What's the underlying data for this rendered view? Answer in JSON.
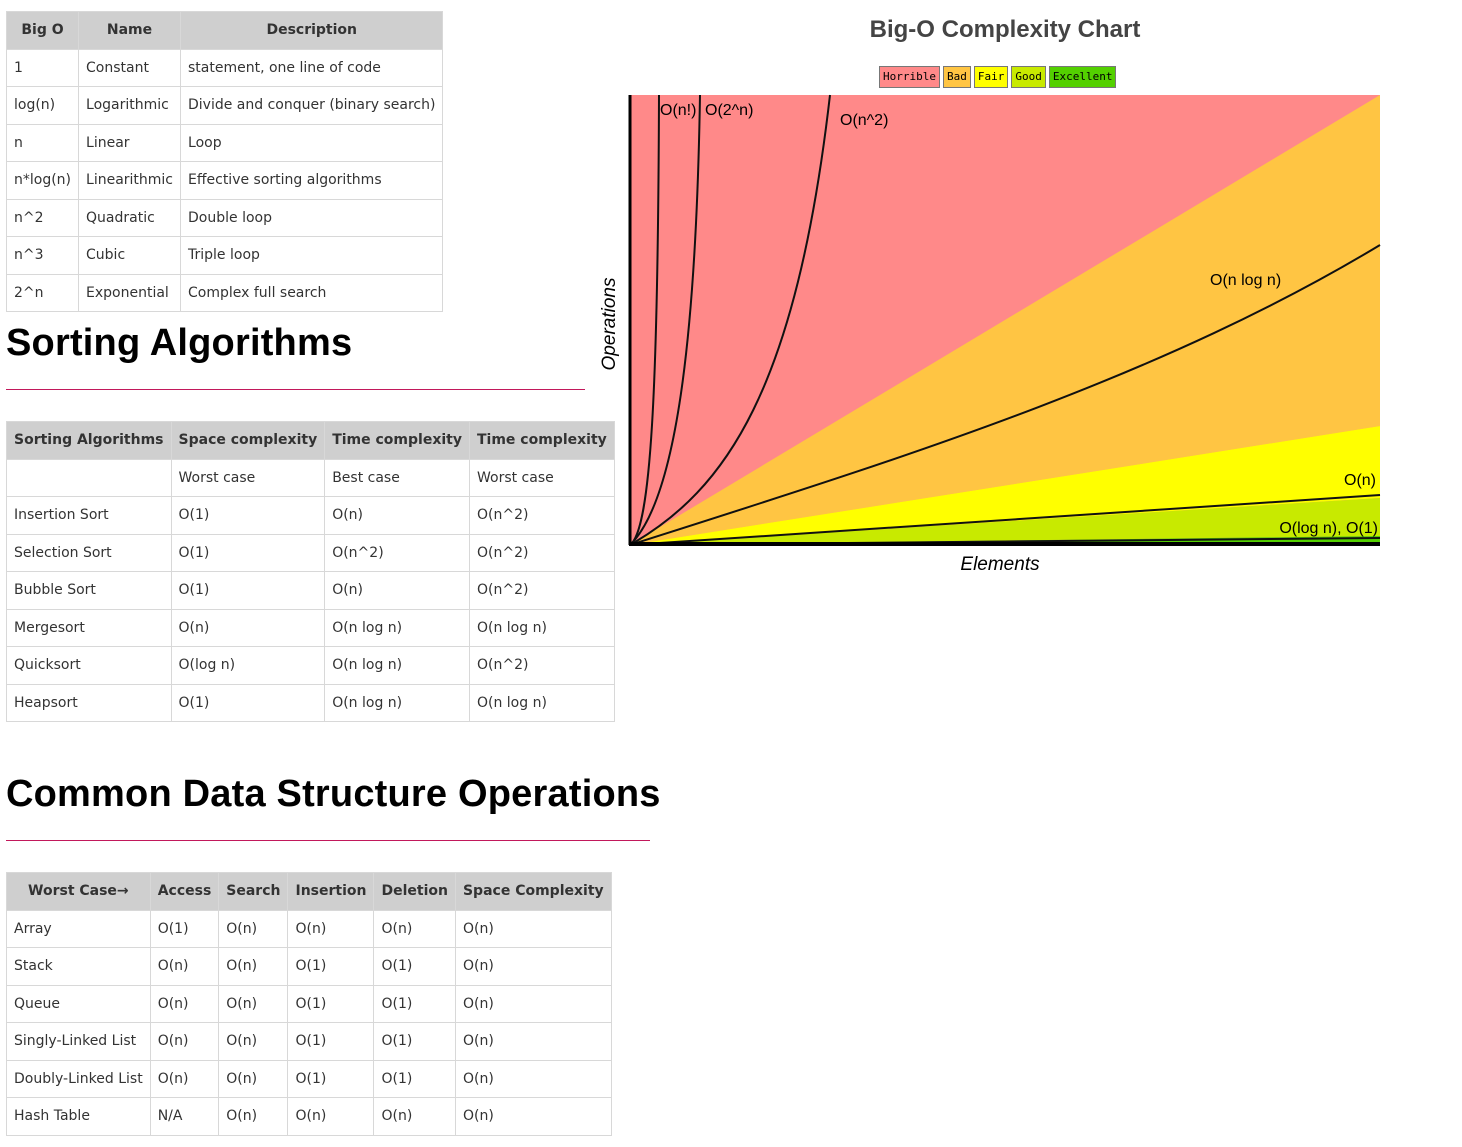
{
  "bigo_table": {
    "headers": [
      "Big O",
      "Name",
      "Description"
    ],
    "rows": [
      [
        "1",
        "Constant",
        "statement, one line of code"
      ],
      [
        "log(n)",
        "Logarithmic",
        "Divide and conquer (binary search)"
      ],
      [
        "n",
        "Linear",
        "Loop"
      ],
      [
        "n*log(n)",
        "Linearithmic",
        "Effective sorting algorithms"
      ],
      [
        "n^2",
        "Quadratic",
        "Double loop"
      ],
      [
        "n^3",
        "Cubic",
        "Triple loop"
      ],
      [
        "2^n",
        "Exponential",
        "Complex full search"
      ]
    ]
  },
  "sorting_section": {
    "heading": "Sorting Algorithms",
    "headers": [
      "Sorting Algorithms",
      "Space complexity",
      "Time complexity",
      "Time complexity"
    ],
    "subheaders": [
      "",
      "Worst case",
      "Best case",
      "Worst case"
    ],
    "rows": [
      [
        "Insertion Sort",
        "O(1)",
        "O(n)",
        "O(n^2)"
      ],
      [
        "Selection Sort",
        "O(1)",
        "O(n^2)",
        "O(n^2)"
      ],
      [
        "Bubble Sort",
        "O(1)",
        "O(n)",
        "O(n^2)"
      ],
      [
        "Mergesort",
        "O(n)",
        "O(n log n)",
        "O(n log n)"
      ],
      [
        "Quicksort",
        "O(log n)",
        "O(n log n)",
        "O(n^2)"
      ],
      [
        "Heapsort",
        "O(1)",
        "O(n log n)",
        "O(n log n)"
      ]
    ]
  },
  "ds_section": {
    "heading": "Common Data Structure Operations",
    "headers": [
      "Worst Case→",
      "Access",
      "Search",
      "Insertion",
      "Deletion",
      "Space Complexity"
    ],
    "rows": [
      [
        "Array",
        "O(1)",
        "O(n)",
        "O(n)",
        "O(n)",
        "O(n)"
      ],
      [
        "Stack",
        "O(n)",
        "O(n)",
        "O(1)",
        "O(1)",
        "O(n)"
      ],
      [
        "Queue",
        "O(n)",
        "O(n)",
        "O(1)",
        "O(1)",
        "O(n)"
      ],
      [
        "Singly-Linked List",
        "O(n)",
        "O(n)",
        "O(1)",
        "O(1)",
        "O(n)"
      ],
      [
        "Doubly-Linked List",
        "O(n)",
        "O(n)",
        "O(1)",
        "O(1)",
        "O(n)"
      ],
      [
        "Hash Table",
        "N/A",
        "O(n)",
        "O(n)",
        "O(n)",
        "O(n)"
      ]
    ]
  },
  "chart_data": {
    "type": "line",
    "title": "Big-O Complexity Chart",
    "xlabel": "Elements",
    "ylabel": "Operations",
    "legend": {
      "placement": "top-center",
      "entries": [
        {
          "label": "Horrible",
          "color": "#ff8989"
        },
        {
          "label": "Bad",
          "color": "#ffc543"
        },
        {
          "label": "Fair",
          "color": "#ffff00"
        },
        {
          "label": "Good",
          "color": "#c8ea00"
        },
        {
          "label": "Excellent",
          "color": "#53d000"
        }
      ]
    },
    "grid": false,
    "series": [
      {
        "name": "O(n!)"
      },
      {
        "name": "O(2^n)"
      },
      {
        "name": "O(n^2)"
      },
      {
        "name": "O(n log n)"
      },
      {
        "name": "O(n)"
      },
      {
        "name": "O(log n), O(1)"
      }
    ]
  }
}
